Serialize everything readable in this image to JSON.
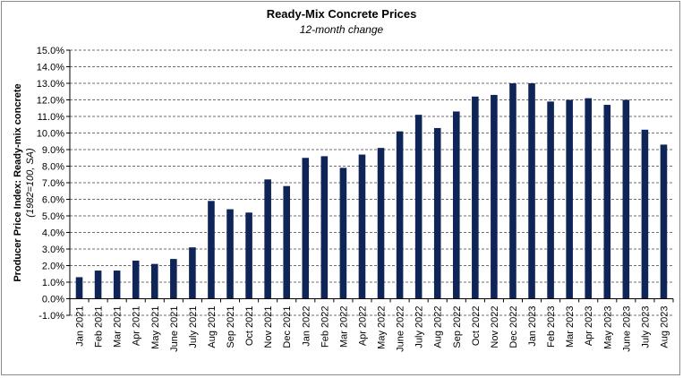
{
  "chart_data": {
    "type": "bar",
    "title": "Ready-Mix Concrete Prices",
    "subtitle": "12-month change",
    "ylabel": "Producer Price Index: Ready-mix concrete",
    "ylabel_sub": "(1982=100, SA)",
    "xlabel": "",
    "ylim": [
      -1.0,
      15.0
    ],
    "ytick_step": 1.0,
    "ytick_format": "percent_1dp",
    "grid": "horizontal-dashed",
    "bar_color": "#0f2557",
    "categories": [
      "Jan 2021",
      "Feb 2021",
      "Mar 2021",
      "Apr 2021",
      "May 2021",
      "June 2021",
      "July 2021",
      "Aug 2021",
      "Sep 2021",
      "Oct 2021",
      "Nov 2021",
      "Dec 2021",
      "Jan 2022",
      "Feb 2022",
      "Mar 2022",
      "Apr 2022",
      "May 2022",
      "June 2022",
      "July 2022",
      "Aug 2022",
      "Sep 2022",
      "Oct 2022",
      "Nov 2022",
      "Dec 2022",
      "Jan 2023",
      "Feb 2023",
      "Mar 2023",
      "Apr 2023",
      "May 2023",
      "June 2023",
      "July 2023",
      "Aug 2023"
    ],
    "values": [
      1.3,
      1.7,
      1.7,
      2.3,
      2.1,
      2.4,
      3.1,
      5.9,
      5.4,
      5.2,
      7.2,
      6.8,
      8.5,
      8.6,
      7.9,
      8.7,
      9.1,
      10.1,
      11.1,
      10.3,
      11.3,
      12.2,
      12.3,
      13.0,
      13.0,
      11.9,
      12.0,
      12.1,
      11.7,
      12.0,
      10.2,
      9.3
    ]
  }
}
